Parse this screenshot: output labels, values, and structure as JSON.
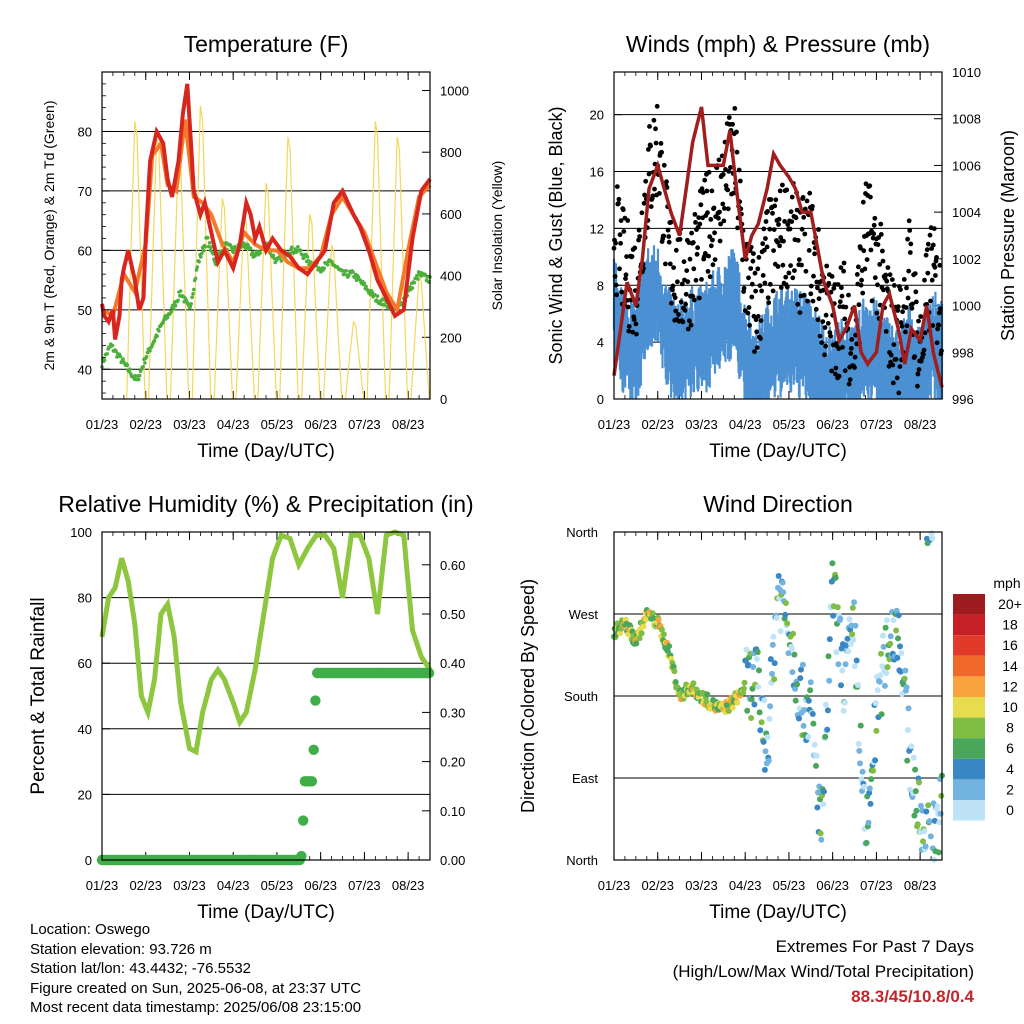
{
  "colors": {
    "temp_2m": "#d7261e",
    "temp_9m": "#f47a2a",
    "dewpoint": "#4daf3c",
    "solar": "#f4d75e",
    "gust": "#000000",
    "wind": "#4a90d2",
    "pressure": "#a01e1e",
    "rh": "#8dc63f",
    "precip": "#3fae49",
    "extremes_value": "#c0272d"
  },
  "chart_data": [
    {
      "type": "line",
      "title": "Temperature (F)",
      "xlabel": "Time (Day/UTC)",
      "ylabel": "2m & 9m T (Red, Orange) & 2m Td (Green)",
      "ylabel_right": "Solar Insolation (Yellow)",
      "x_ticks": [
        "01/23",
        "02/23",
        "03/23",
        "04/23",
        "05/23",
        "06/23",
        "07/23",
        "08/23"
      ],
      "ylim": [
        35,
        90
      ],
      "y_ticks": [
        40,
        50,
        60,
        70,
        80
      ],
      "ylim_right": [
        0,
        1060
      ],
      "y_ticks_right": [
        0,
        200,
        400,
        600,
        800,
        1000
      ],
      "grid": "horizontal",
      "series": [
        {
          "name": "2m T",
          "color_key": "temp_2m",
          "x": [
            0,
            0.1,
            0.3,
            0.5,
            0.6,
            0.8,
            0.9,
            1.0,
            1.2,
            1.5,
            1.7,
            1.9,
            2.0,
            2.2,
            2.5,
            2.8,
            3.0,
            3.2,
            3.5,
            3.7,
            3.9,
            4.2,
            4.5,
            4.7,
            5.0,
            5.3,
            5.6,
            6.0,
            6.3,
            6.6,
            6.8,
            7.0,
            7.2,
            7.5,
            7.8,
            8.2,
            8.6,
            9.0,
            9.4,
            9.8,
            10.2,
            10.6,
            11.0,
            11.5,
            11.8,
            12.2,
            12.6,
            13.0,
            13.4,
            13.8,
            14.2,
            14.6,
            15.0
          ],
          "y": [
            51,
            49,
            48,
            50,
            45,
            49,
            55,
            57,
            60,
            55,
            50,
            52,
            62,
            75,
            80,
            78,
            72,
            69,
            75,
            83,
            88,
            70,
            66,
            68,
            63,
            58,
            60,
            57,
            61,
            68,
            66,
            62,
            64,
            60,
            62,
            60,
            59,
            57,
            56,
            58,
            60,
            68,
            70,
            66,
            64,
            60,
            55,
            52,
            49,
            50,
            62,
            70,
            72
          ]
        },
        {
          "name": "9m T",
          "color_key": "temp_9m",
          "x": [
            0,
            0.5,
            1.0,
            1.5,
            2.0,
            2.3,
            2.7,
            3.0,
            3.4,
            3.8,
            4.2,
            4.6,
            5.0,
            5.5,
            6.0,
            6.5,
            7.0,
            7.5,
            8.0,
            8.5,
            9.0,
            9.5,
            10.0,
            10.5,
            11.0,
            11.5,
            12.0,
            12.5,
            13.0,
            13.5,
            14.0,
            14.5,
            15.0
          ],
          "y": [
            50,
            49,
            56,
            53,
            61,
            76,
            78,
            71,
            70,
            82,
            69,
            68,
            66,
            61,
            58,
            63,
            61,
            60,
            60,
            58,
            57,
            57,
            59,
            66,
            69,
            66,
            63,
            58,
            53,
            50,
            60,
            69,
            71
          ]
        },
        {
          "name": "2m Td",
          "color_key": "dewpoint",
          "x": [
            0,
            0.4,
            0.8,
            1.2,
            1.6,
            2.0,
            2.4,
            2.8,
            3.2,
            3.6,
            4.0,
            4.4,
            4.8,
            5.2,
            5.6,
            6.0,
            6.5,
            7.0,
            7.5,
            8.0,
            8.5,
            9.0,
            9.5,
            10.0,
            10.5,
            11.0,
            11.5,
            12.0,
            12.5,
            13.0,
            13.5,
            14.0,
            14.5,
            15.0
          ],
          "y": [
            41,
            44,
            42,
            40,
            38,
            42,
            45,
            48,
            50,
            53,
            50,
            58,
            62,
            58,
            61,
            60,
            61,
            59,
            61,
            58,
            60,
            60,
            58,
            57,
            58,
            56,
            56,
            54,
            52,
            51,
            50,
            53,
            56,
            55
          ]
        },
        {
          "name": "Solar",
          "color_key": "solar",
          "axis": "right",
          "peaks_day": [
            1.55,
            2.55,
            3.55,
            4.55,
            5.55,
            6.55,
            7.55,
            8.55,
            9.55,
            10.55,
            11.55,
            12.55,
            13.55,
            14.55
          ],
          "peaks_value": [
            900,
            850,
            800,
            950,
            650,
            600,
            700,
            850,
            600,
            500,
            250,
            900,
            850,
            400
          ]
        }
      ]
    },
    {
      "type": "scatter",
      "title": "Winds (mph) & Pressure (mb)",
      "xlabel": "Time (Day/UTC)",
      "ylabel": "Sonic Wind & Gust (Blue, Black)",
      "ylabel_right": "Station Pressure (Maroon)",
      "x_ticks": [
        "01/23",
        "02/23",
        "03/23",
        "04/23",
        "05/23",
        "06/23",
        "07/23",
        "08/23"
      ],
      "ylim": [
        0,
        23
      ],
      "y_ticks": [
        0,
        4,
        8,
        12,
        16,
        20
      ],
      "ylim_right": [
        996,
        1010
      ],
      "y_ticks_right": [
        996,
        998,
        1000,
        1002,
        1004,
        1006,
        1008,
        1010
      ],
      "grid": "horizontal",
      "series": [
        {
          "name": "Gust",
          "color_key": "gust",
          "wind_envelope_day": [
            0,
            0.5,
            1.0,
            1.5,
            2.0,
            2.5,
            3.0,
            3.5,
            4.0,
            4.5,
            5.0,
            5.5,
            6.0,
            6.5,
            7.0,
            7.5,
            8.0,
            8.5,
            9.0,
            9.5,
            10.0,
            10.5,
            11.0,
            11.5,
            12.0,
            12.5,
            13.0,
            13.5,
            14.0,
            14.5,
            15.0
          ],
          "gust_mean": [
            12,
            9,
            8,
            15,
            18,
            10,
            8,
            9,
            11,
            13,
            15,
            17,
            9,
            6,
            10,
            11,
            12,
            10,
            11,
            7,
            5,
            6,
            4,
            12,
            10,
            6,
            4,
            9,
            3,
            9,
            6
          ]
        },
        {
          "name": "Wind",
          "color_key": "wind",
          "wind_mean": [
            7,
            5,
            4,
            8,
            8,
            5,
            4,
            5,
            5,
            6,
            7,
            8,
            4,
            2,
            4,
            5,
            5,
            5,
            4,
            3,
            2,
            3,
            2,
            5,
            4,
            3,
            2,
            4,
            2,
            5,
            4
          ]
        },
        {
          "name": "Pressure",
          "color_key": "pressure",
          "axis": "right",
          "x": [
            0,
            0.3,
            0.6,
            1.0,
            1.3,
            1.6,
            2.0,
            2.3,
            2.6,
            3.0,
            3.3,
            3.6,
            4.0,
            4.3,
            4.6,
            5.0,
            5.3,
            5.6,
            6.0,
            6.3,
            6.6,
            7.0,
            7.3,
            7.6,
            8.0,
            8.3,
            8.6,
            9.0,
            9.3,
            9.6,
            10.0,
            10.3,
            10.6,
            11.0,
            11.3,
            11.6,
            12.0,
            12.3,
            12.6,
            13.0,
            13.3,
            13.6,
            14.0,
            14.3,
            14.6,
            15.0
          ],
          "y": [
            997,
            999,
            1001,
            1000,
            1002,
            1005,
            1006,
            1005,
            1004,
            1003,
            1005,
            1007,
            1008.5,
            1006,
            1006,
            1006,
            1007.5,
            1005,
            1002,
            1003,
            1003.5,
            1005,
            1006.5,
            1006,
            1005.5,
            1005,
            1004,
            1004,
            1002.5,
            1001,
            1000,
            998.5,
            999,
            1000,
            998,
            997.5,
            998,
            1000,
            1000.5,
            999,
            997.5,
            999,
            998.5,
            1000,
            998,
            996.5
          ]
        }
      ]
    },
    {
      "type": "line",
      "title": "Relative Humidity (%) & Precipitation (in)",
      "xlabel": "Time (Day/UTC)",
      "ylabel": "Percent & Total Rainfall",
      "x_ticks": [
        "01/23",
        "02/23",
        "03/23",
        "04/23",
        "05/23",
        "06/23",
        "07/23",
        "08/23"
      ],
      "ylim": [
        0,
        100
      ],
      "y_ticks": [
        0,
        20,
        40,
        60,
        80,
        100
      ],
      "ylim_right": [
        0,
        0.6667
      ],
      "y_ticks_right": [
        "0.00",
        "0.10",
        "0.20",
        "0.30",
        "0.40",
        "0.50",
        "0.60"
      ],
      "grid": "horizontal",
      "series": [
        {
          "name": "RH",
          "color_key": "rh",
          "x": [
            0,
            0.3,
            0.6,
            0.9,
            1.2,
            1.5,
            1.8,
            2.1,
            2.4,
            2.7,
            3.0,
            3.3,
            3.6,
            4.0,
            4.3,
            4.6,
            5.0,
            5.3,
            5.6,
            6.0,
            6.3,
            6.6,
            7.0,
            7.4,
            7.8,
            8.2,
            8.6,
            9.0,
            9.4,
            9.8,
            10.2,
            10.6,
            11.0,
            11.4,
            11.8,
            12.2,
            12.6,
            13.0,
            13.4,
            13.8,
            14.2,
            14.6,
            15.0
          ],
          "y": [
            68,
            80,
            83,
            92,
            85,
            72,
            50,
            45,
            55,
            75,
            78,
            68,
            48,
            34,
            33,
            45,
            55,
            58,
            55,
            48,
            42,
            45,
            58,
            75,
            92,
            99,
            98,
            90,
            95,
            99,
            99,
            95,
            80,
            99,
            99,
            92,
            75,
            99,
            100,
            99,
            70,
            62,
            58
          ]
        },
        {
          "name": "Precip",
          "color_key": "precip",
          "axis": "right",
          "x": [
            0,
            9.1,
            9.15,
            9.2,
            9.25,
            9.3,
            9.35,
            9.4,
            9.6,
            9.7,
            9.8,
            10.0,
            10.2,
            15.0
          ],
          "y": [
            0,
            0,
            0.02,
            0.08,
            0.16,
            0.16,
            0.16,
            0.16,
            0.16,
            0.24,
            0.38,
            0.38,
            0.38,
            0.38
          ]
        }
      ]
    },
    {
      "type": "scatter",
      "title": "Wind Direction",
      "xlabel": "Time (Day/UTC)",
      "ylabel": "Direction (Colored By Speed)",
      "x_ticks": [
        "01/23",
        "02/23",
        "03/23",
        "04/23",
        "05/23",
        "06/23",
        "07/23",
        "08/23"
      ],
      "y_ticks": [
        "North",
        "East",
        "South",
        "West",
        "North"
      ],
      "ylim": [
        0,
        360
      ],
      "grid": "horizontal",
      "legend": {
        "title": "mph",
        "placement": "right",
        "labels": [
          "20+",
          "18",
          "16",
          "14",
          "12",
          "10",
          "8",
          "6",
          "4",
          "2",
          "0"
        ],
        "colors": [
          "#9e1b20",
          "#c62026",
          "#e23a2a",
          "#f0682a",
          "#f8a33e",
          "#e6dc4e",
          "#7fbd44",
          "#4aa65a",
          "#3a87c6",
          "#72b3e0",
          "#bfe3f6"
        ]
      },
      "series": [
        {
          "name": "Direction",
          "dir_track_day": [
            0,
            0.5,
            1.0,
            1.5,
            2.0,
            2.5,
            3.0,
            3.5,
            4.0,
            4.5,
            5.0,
            5.5,
            6.0,
            6.5,
            7.0,
            7.5,
            8.0,
            8.5,
            9.0,
            9.5,
            10.0,
            10.5,
            11.0,
            11.5,
            12.0,
            12.5,
            13.0,
            13.5,
            14.0,
            14.5,
            15.0
          ],
          "dir_track_deg": [
            250,
            260,
            240,
            270,
            260,
            230,
            180,
            190,
            180,
            170,
            165,
            175,
            190,
            200,
            120,
            300,
            260,
            180,
            160,
            30,
            300,
            200,
            250,
            10,
            160,
            240,
            260,
            120,
            40,
            20,
            60
          ]
        }
      ]
    }
  ],
  "info": {
    "location": "Location: Oswego",
    "elevation": "Station elevation: 93.726 m",
    "latlon": "Station lat/lon: 43.4432; -76.5532",
    "created": "Figure created on Sun, 2025-06-08, at 23:37 UTC",
    "recent": "Most recent data timestamp: 2025/06/08 23:15:00"
  },
  "extremes": {
    "line1": "Extremes For Past 7 Days",
    "line2": "(High/Low/Max Wind/Total Precipitation)",
    "value": "88.3/45/10.8/0.4"
  }
}
